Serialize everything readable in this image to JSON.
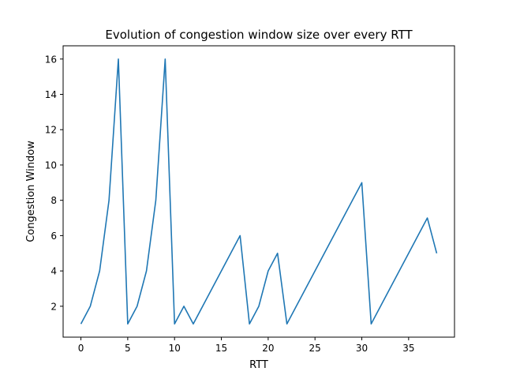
{
  "chart_data": {
    "type": "line",
    "title": "Evolution of congestion window size over every RTT",
    "xlabel": "RTT",
    "ylabel": "Congestion Window",
    "xlim": [
      -1.9,
      39.9
    ],
    "ylim": [
      0.25,
      16.75
    ],
    "xticks": [
      0,
      5,
      10,
      15,
      20,
      25,
      30,
      35
    ],
    "yticks": [
      2,
      4,
      6,
      8,
      10,
      12,
      14,
      16
    ],
    "grid": false,
    "series": [
      {
        "color": "#1f77b4",
        "x": [
          0,
          1,
          2,
          3,
          4,
          5,
          6,
          7,
          8,
          9,
          10,
          11,
          12,
          13,
          14,
          15,
          16,
          17,
          18,
          19,
          20,
          21,
          22,
          23,
          24,
          25,
          26,
          27,
          28,
          29,
          30,
          31,
          32,
          33,
          34,
          35,
          36,
          37,
          38
        ],
        "y": [
          1,
          2,
          4,
          8,
          16,
          1,
          2,
          4,
          8,
          16,
          1,
          2,
          1,
          2,
          3,
          4,
          5,
          6,
          1,
          2,
          4,
          5,
          1,
          2,
          3,
          4,
          5,
          6,
          7,
          8,
          9,
          1,
          2,
          3,
          4,
          5,
          6,
          7,
          5
        ]
      }
    ]
  }
}
